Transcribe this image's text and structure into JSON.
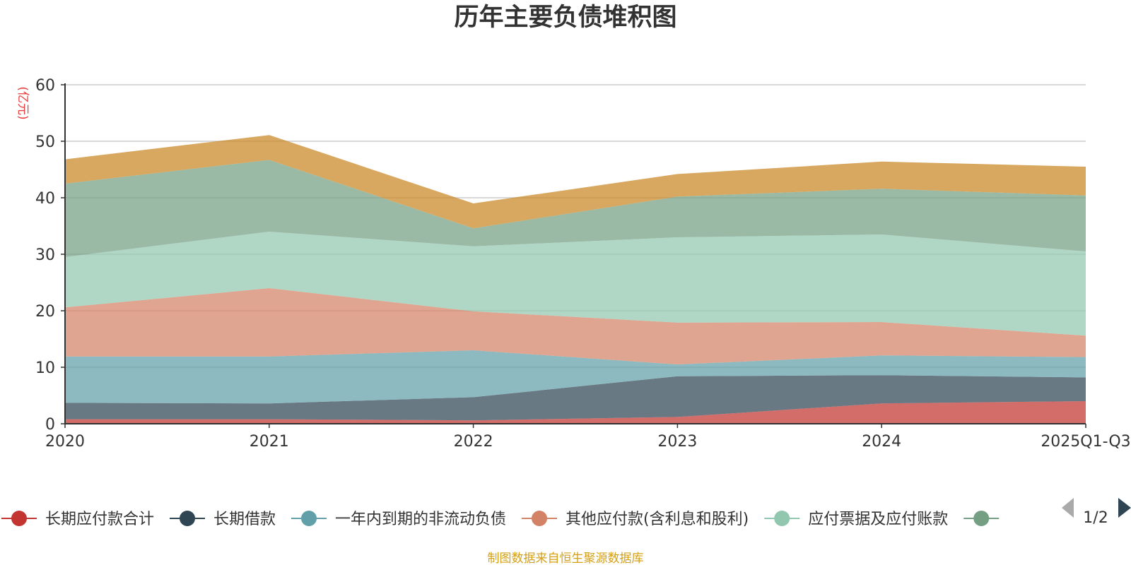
{
  "chart_data": {
    "type": "area",
    "stacked": true,
    "title": "历年主要负债堆积图",
    "ylabel": "(亿元)",
    "xlabel": "",
    "ylim": [
      0,
      60
    ],
    "yticks": [
      0,
      10,
      20,
      30,
      40,
      50,
      60
    ],
    "categories": [
      "2020",
      "2021",
      "2022",
      "2023",
      "2024",
      "2025Q1-Q3"
    ],
    "grid": true,
    "series": [
      {
        "name": "长期应付款合计",
        "color": "#c23531",
        "values": [
          0.8,
          0.8,
          0.6,
          1.2,
          3.6,
          4.0
        ]
      },
      {
        "name": "长期借款",
        "color": "#2f4554",
        "values": [
          2.9,
          2.8,
          4.1,
          7.2,
          5.0,
          4.2
        ]
      },
      {
        "name": "一年内到期的非流动负债",
        "color": "#61a0a8",
        "values": [
          8.2,
          8.3,
          8.3,
          2.1,
          3.5,
          3.6
        ]
      },
      {
        "name": "其他应付款(含利息和股利)",
        "color": "#d48265",
        "values": [
          8.7,
          12.1,
          6.9,
          7.4,
          5.9,
          3.8
        ]
      },
      {
        "name": "应付票据及应付账款",
        "color": "#91c7ae",
        "values": [
          8.9,
          10.0,
          11.5,
          15.1,
          15.5,
          14.9
        ]
      },
      {
        "name": "",
        "color": "#749f83",
        "values": [
          13.0,
          12.7,
          3.2,
          7.2,
          8.1,
          9.9
        ]
      },
      {
        "name": "",
        "color": "#ca8622",
        "values": [
          4.3,
          4.4,
          4.4,
          4.0,
          4.8,
          5.1
        ]
      }
    ]
  },
  "legend": {
    "page": "1/2",
    "prev_icon": "triangle-left-icon",
    "next_icon": "triangle-right-icon"
  },
  "footer": {
    "source_text": "制图数据来自恒生聚源数据库",
    "source_color": "#d4a017"
  }
}
